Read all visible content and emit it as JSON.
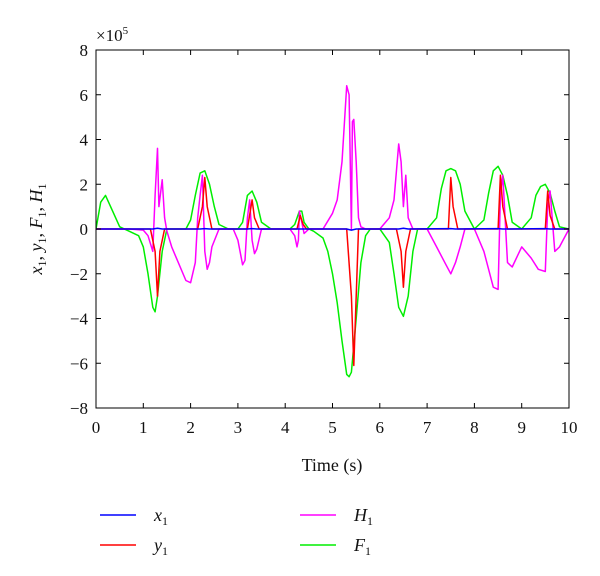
{
  "chart_data": {
    "type": "line",
    "xlabel": "Time (s)",
    "ylabel_parts": [
      {
        "var": "x",
        "sub": "1",
        "sep": ", "
      },
      {
        "var": "y",
        "sub": "1",
        "sep": ", "
      },
      {
        "var": "F",
        "sub": "1",
        "sep": ", "
      },
      {
        "var": "H",
        "sub": "1",
        "sep": ""
      }
    ],
    "y_multiplier": {
      "base": "×10",
      "exp": "5"
    },
    "xlim": [
      0,
      10
    ],
    "ylim": [
      -8,
      8
    ],
    "xticks": [
      0,
      1,
      2,
      3,
      4,
      5,
      6,
      7,
      8,
      9,
      10
    ],
    "yticks": [
      -8,
      -6,
      -4,
      -2,
      0,
      2,
      4,
      6,
      8
    ],
    "grid": false,
    "legend_position": "bottom",
    "series": [
      {
        "name_var": "x",
        "name_sub": "1",
        "color": "#0000ff",
        "x": [
          0,
          1.2,
          1.3,
          1.4,
          2.2,
          2.3,
          2.4,
          3.2,
          3.3,
          3.4,
          4.3,
          4.4,
          5.3,
          5.4,
          5.5,
          6.4,
          6.5,
          6.6,
          7.5,
          7.6,
          8.5,
          8.6,
          9.5,
          9.6,
          10
        ],
        "values": [
          0,
          0,
          0.03,
          0,
          0,
          0.02,
          0,
          0,
          0.02,
          0,
          0,
          0,
          0,
          -0.05,
          0,
          0,
          0.03,
          0,
          0.02,
          0,
          0.02,
          0,
          0.02,
          0,
          0
        ]
      },
      {
        "name_var": "y",
        "name_sub": "1",
        "color": "#ff0000",
        "x": [
          0,
          1.15,
          1.25,
          1.3,
          1.35,
          1.45,
          2.15,
          2.25,
          2.3,
          2.35,
          2.45,
          3.2,
          3.3,
          3.35,
          3.45,
          4.25,
          4.32,
          4.38,
          4.45,
          5.3,
          5.4,
          5.45,
          5.5,
          5.55,
          6.35,
          6.45,
          6.5,
          6.55,
          6.65,
          7.45,
          7.5,
          7.55,
          7.65,
          8.5,
          8.55,
          8.6,
          8.7,
          9.5,
          9.55,
          9.6,
          9.7,
          10
        ],
        "values": [
          0,
          0,
          -1.0,
          -3.0,
          -1.0,
          0,
          0,
          1.0,
          2.3,
          1.0,
          0,
          0,
          1.3,
          0.5,
          0,
          0,
          0.6,
          0.2,
          0,
          0,
          -3.0,
          -6.1,
          -3.0,
          0,
          0,
          -1.0,
          -2.6,
          -1.0,
          0,
          0,
          2.3,
          1.0,
          0,
          0,
          2.4,
          1.0,
          0,
          0,
          1.7,
          0.6,
          0,
          0
        ]
      },
      {
        "name_var": "H",
        "name_sub": "1",
        "color": "#ff00ff",
        "x": [
          0,
          0.7,
          1.0,
          1.1,
          1.2,
          1.25,
          1.3,
          1.33,
          1.4,
          1.45,
          1.5,
          1.6,
          1.7,
          1.9,
          2.0,
          2.1,
          2.15,
          2.2,
          2.25,
          2.3,
          2.35,
          2.4,
          2.45,
          2.6,
          2.9,
          3.0,
          3.1,
          3.15,
          3.2,
          3.25,
          3.3,
          3.35,
          3.4,
          3.5,
          4.1,
          4.2,
          4.25,
          4.28,
          4.3,
          4.35,
          4.4,
          4.5,
          4.8,
          5.0,
          5.1,
          5.2,
          5.3,
          5.35,
          5.4,
          5.42,
          5.45,
          5.5,
          5.55,
          5.6,
          5.7,
          6.0,
          6.2,
          6.3,
          6.4,
          6.45,
          6.5,
          6.55,
          6.6,
          6.7,
          7.0,
          7.2,
          7.4,
          7.5,
          7.6,
          7.7,
          7.8,
          8.0,
          8.2,
          8.4,
          8.5,
          8.55,
          8.6,
          8.7,
          8.8,
          9.0,
          9.2,
          9.35,
          9.5,
          9.55,
          9.6,
          9.7,
          9.8,
          10
        ],
        "values": [
          0,
          0,
          -0.05,
          -0.3,
          -1.0,
          1.5,
          3.6,
          1.0,
          2.2,
          0.5,
          -0.1,
          -0.8,
          -1.3,
          -2.3,
          -2.4,
          -1.5,
          0.5,
          1.5,
          2.4,
          -1.0,
          -1.8,
          -1.5,
          -0.8,
          0,
          0,
          -0.5,
          -1.6,
          -1.4,
          0.5,
          1.3,
          -0.5,
          -1.1,
          -0.9,
          0,
          0,
          -0.3,
          -0.8,
          -0.5,
          0.8,
          0.3,
          -0.2,
          0,
          0,
          0.7,
          1.3,
          3.0,
          6.4,
          6.0,
          0,
          4.8,
          4.9,
          3.0,
          0.5,
          0.1,
          0,
          0,
          0.5,
          1.3,
          3.8,
          3.0,
          1.0,
          2.4,
          0.5,
          0,
          0,
          -0.8,
          -1.6,
          -2.0,
          -1.5,
          -0.8,
          0,
          0,
          -1.0,
          -2.6,
          -2.7,
          1.5,
          2.4,
          -1.5,
          -1.7,
          -0.8,
          -1.3,
          -1.8,
          -1.9,
          1.0,
          1.7,
          -1.0,
          -0.8,
          0
        ]
      },
      {
        "name_var": "F",
        "name_sub": "1",
        "color": "#00ee00",
        "x": [
          0,
          0.1,
          0.2,
          0.35,
          0.5,
          0.7,
          0.9,
          1.0,
          1.1,
          1.2,
          1.25,
          1.3,
          1.4,
          1.5,
          1.7,
          1.9,
          2.0,
          2.1,
          2.2,
          2.3,
          2.4,
          2.5,
          2.6,
          2.8,
          3.0,
          3.1,
          3.2,
          3.3,
          3.4,
          3.5,
          3.7,
          4.1,
          4.2,
          4.3,
          4.35,
          4.4,
          4.5,
          4.6,
          4.8,
          4.9,
          5.0,
          5.1,
          5.2,
          5.3,
          5.35,
          5.4,
          5.5,
          5.6,
          5.7,
          5.8,
          6.0,
          6.2,
          6.3,
          6.4,
          6.5,
          6.6,
          6.7,
          6.8,
          7.0,
          7.2,
          7.3,
          7.4,
          7.5,
          7.6,
          7.7,
          7.8,
          8.0,
          8.2,
          8.3,
          8.4,
          8.5,
          8.6,
          8.7,
          8.8,
          9.0,
          9.2,
          9.3,
          9.4,
          9.5,
          9.6,
          9.7,
          9.8,
          10
        ],
        "values": [
          0,
          1.2,
          1.5,
          0.8,
          0.1,
          -0.1,
          -0.3,
          -0.8,
          -2.0,
          -3.5,
          -3.7,
          -3.0,
          -1.0,
          0,
          0,
          0,
          0.4,
          1.5,
          2.5,
          2.6,
          2.0,
          1.0,
          0.2,
          0,
          0,
          0.3,
          1.5,
          1.7,
          1.2,
          0.3,
          0,
          0,
          0.2,
          0.8,
          0.8,
          0.3,
          0,
          -0.1,
          -0.4,
          -1.0,
          -2.0,
          -3.3,
          -5.0,
          -6.5,
          -6.6,
          -6.4,
          -4.0,
          -1.5,
          -0.3,
          0,
          0,
          -0.6,
          -2.0,
          -3.5,
          -3.9,
          -3.0,
          -1.0,
          0,
          0,
          0.5,
          1.8,
          2.6,
          2.7,
          2.6,
          2.0,
          0.8,
          0,
          0.4,
          1.6,
          2.6,
          2.8,
          2.4,
          1.5,
          0.3,
          0,
          0.5,
          1.5,
          1.9,
          2.0,
          1.6,
          0.8,
          0.1,
          0
        ]
      }
    ]
  }
}
